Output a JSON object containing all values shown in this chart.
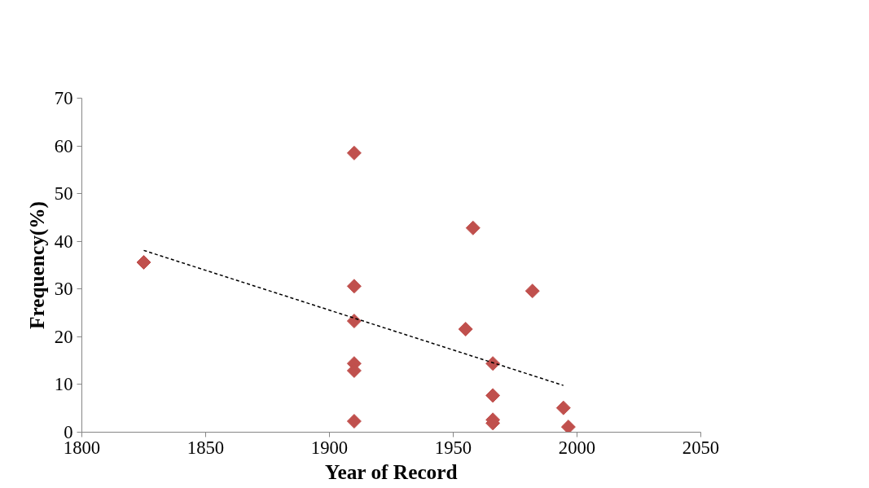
{
  "chart_data": {
    "type": "scatter",
    "xlabel": "Year of Record",
    "ylabel": "Frequency(%)",
    "xlim": [
      1800,
      2050
    ],
    "ylim": [
      0,
      70
    ],
    "xticks": [
      1800,
      1850,
      1900,
      1950,
      2000,
      2050
    ],
    "yticks": [
      0,
      10,
      20,
      30,
      40,
      50,
      60,
      70
    ],
    "grid": false,
    "marker": "diamond",
    "series": [
      {
        "color": "#c0504d",
        "x": [
          1825,
          1910,
          1910,
          1910,
          1910,
          1910,
          1910,
          1958,
          1955,
          1982,
          1966,
          1966,
          1966,
          1966,
          1994.5,
          1996.5
        ],
        "values": [
          35.6,
          58.5,
          30.6,
          23.3,
          14.4,
          12.9,
          2.3,
          42.8,
          21.6,
          29.6,
          14.4,
          7.7,
          2.6,
          1.9,
          5.1,
          1.1
        ]
      },
      {
        "type": "line",
        "color": "#000000",
        "line_style": "dashed",
        "marker": "none",
        "x": [
          1825,
          1994.5
        ],
        "values": [
          38.1,
          9.8
        ]
      }
    ]
  }
}
